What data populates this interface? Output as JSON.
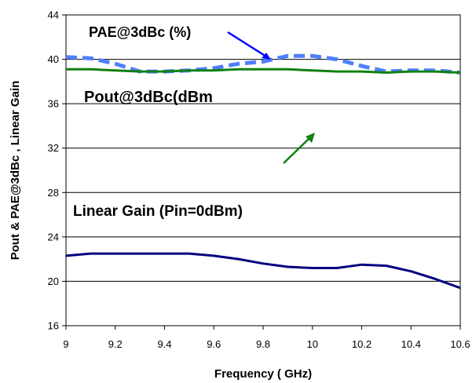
{
  "chart_data": {
    "type": "line",
    "xlabel": "Frequency ( GHz)",
    "ylabel": "Pout & PAE@3dBc , Linear Gain",
    "xlim": [
      9,
      10.6
    ],
    "ylim": [
      16,
      44
    ],
    "x_ticks": [
      "9",
      "9.2",
      "9.4",
      "9.6",
      "9.8",
      "10",
      "10.2",
      "10.4",
      "10.6"
    ],
    "y_ticks": [
      "16",
      "20",
      "24",
      "28",
      "32",
      "36",
      "40",
      "44"
    ],
    "grid": "horizontal",
    "legend": "none",
    "series": [
      {
        "name": "PAE@3dBc (%)",
        "color": "#4F7FFF",
        "style": "dashed",
        "x": [
          9.0,
          9.1,
          9.2,
          9.3,
          9.4,
          9.5,
          9.6,
          9.7,
          9.8,
          9.9,
          10.0,
          10.1,
          10.2,
          10.3,
          10.4,
          10.5,
          10.6
        ],
        "y": [
          40.2,
          40.1,
          39.6,
          38.9,
          38.9,
          39.0,
          39.2,
          39.6,
          39.8,
          40.3,
          40.3,
          40.0,
          39.4,
          38.9,
          39.0,
          39.0,
          38.8
        ]
      },
      {
        "name": "Pout@3dBc(dBm",
        "color": "#108010",
        "style": "solid",
        "x": [
          9.0,
          9.1,
          9.2,
          9.3,
          9.4,
          9.5,
          9.6,
          9.7,
          9.8,
          9.9,
          10.0,
          10.1,
          10.2,
          10.3,
          10.4,
          10.5,
          10.6
        ],
        "y": [
          39.1,
          39.1,
          39.0,
          38.9,
          38.9,
          39.0,
          39.0,
          39.1,
          39.1,
          39.1,
          39.0,
          38.9,
          38.9,
          38.8,
          38.9,
          38.9,
          38.8
        ]
      },
      {
        "name": "Linear Gain (Pin=0dBm)",
        "color": "#000080",
        "style": "solid",
        "x": [
          9.0,
          9.1,
          9.2,
          9.3,
          9.4,
          9.5,
          9.6,
          9.7,
          9.8,
          9.9,
          10.0,
          10.1,
          10.2,
          10.3,
          10.4,
          10.5,
          10.6
        ],
        "y": [
          22.3,
          22.5,
          22.5,
          22.5,
          22.5,
          22.5,
          22.3,
          22.0,
          21.6,
          21.3,
          21.2,
          21.2,
          21.5,
          21.4,
          20.9,
          20.2,
          19.4
        ]
      }
    ],
    "annotations": [
      {
        "text": "PAE@3dBc (%)",
        "target_series": "PAE@3dBc (%)",
        "arrow_color": "#0000FF"
      },
      {
        "text": "Pout@3dBc(dBm",
        "target_series": "Pout@3dBc(dBm",
        "arrow_color": "#108010"
      },
      {
        "text": "Linear Gain (Pin=0dBm)",
        "target_series": "Linear Gain (Pin=0dBm)"
      }
    ]
  }
}
